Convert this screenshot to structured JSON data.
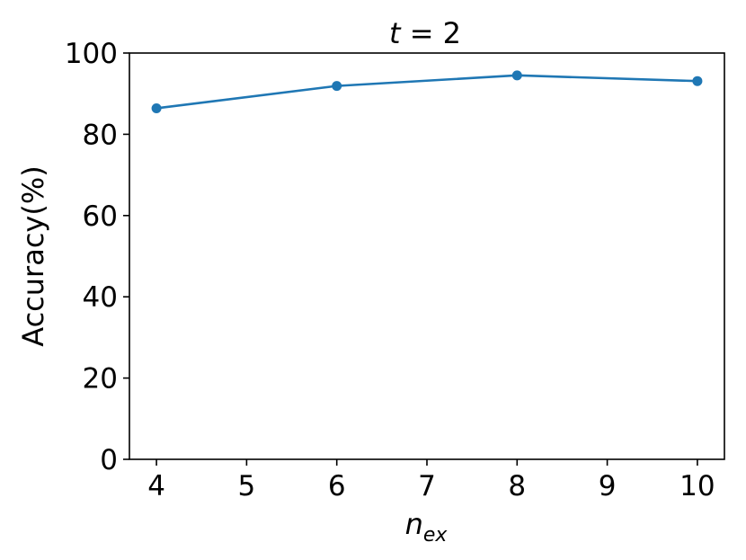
{
  "chart_data": {
    "type": "line",
    "title_var": "t",
    "title_eq": " = 2",
    "xlabel_base": "n",
    "xlabel_sub": "ex",
    "ylabel": "Accuracy(%)",
    "xlim": [
      3.7,
      10.3
    ],
    "ylim": [
      0,
      100
    ],
    "xticks": [
      4,
      5,
      6,
      7,
      8,
      9,
      10
    ],
    "yticks": [
      0,
      20,
      40,
      60,
      80,
      100
    ],
    "grid": false,
    "series": [
      {
        "x": [
          4,
          6,
          8,
          10
        ],
        "y": [
          86.4,
          91.9,
          94.5,
          93.1
        ],
        "color": "#1f77b4"
      }
    ]
  }
}
